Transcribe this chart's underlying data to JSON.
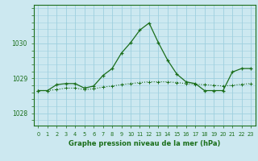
{
  "title": "Graphe pression niveau de la mer (hPa)",
  "background_color": "#cce8f0",
  "grid_color": "#9ecfdf",
  "line_color": "#1a6e1a",
  "x_labels": [
    "0",
    "1",
    "2",
    "3",
    "4",
    "5",
    "6",
    "7",
    "8",
    "9",
    "10",
    "11",
    "12",
    "13",
    "14",
    "15",
    "16",
    "17",
    "18",
    "19",
    "20",
    "21",
    "22",
    "23"
  ],
  "xlim": [
    -0.5,
    23.5
  ],
  "ylim": [
    1027.65,
    1031.1
  ],
  "yticks": [
    1028,
    1029,
    1030
  ],
  "line1_x": [
    0,
    1,
    2,
    3,
    4,
    5,
    6,
    7,
    8,
    9,
    10,
    11,
    12,
    13,
    14,
    15,
    16,
    17,
    18,
    19,
    20,
    21,
    22,
    23
  ],
  "line1_y": [
    1028.65,
    1028.65,
    1028.82,
    1028.85,
    1028.85,
    1028.72,
    1028.78,
    1029.08,
    1029.28,
    1029.72,
    1030.02,
    1030.38,
    1030.58,
    1030.02,
    1029.52,
    1029.12,
    1028.9,
    1028.85,
    1028.65,
    1028.65,
    1028.65,
    1029.18,
    1029.28,
    1029.28
  ],
  "line2_x": [
    0,
    1,
    2,
    3,
    4,
    5,
    6,
    7,
    8,
    9,
    10,
    11,
    12,
    13,
    14,
    15,
    16,
    17,
    18,
    19,
    20,
    21,
    22,
    23
  ],
  "line2_y": [
    1028.65,
    1028.65,
    1028.68,
    1028.72,
    1028.72,
    1028.68,
    1028.7,
    1028.75,
    1028.78,
    1028.82,
    1028.85,
    1028.88,
    1028.9,
    1028.9,
    1028.9,
    1028.88,
    1028.85,
    1028.83,
    1028.82,
    1028.8,
    1028.78,
    1028.8,
    1028.83,
    1028.85
  ]
}
